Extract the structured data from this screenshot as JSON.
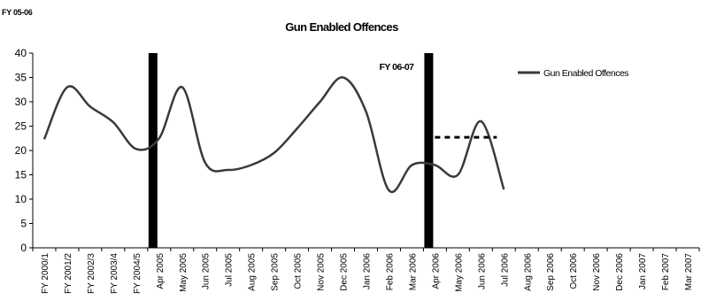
{
  "chart_data": {
    "type": "line",
    "title": "Gun Enabled Offences",
    "corner_label": "FY 05-06",
    "fy_label": "FY 06-07",
    "xlabel": "",
    "ylabel": "",
    "ylim": [
      0,
      40
    ],
    "yticks": [
      0,
      5,
      10,
      15,
      20,
      25,
      30,
      35,
      40
    ],
    "categories": [
      "FY 2000/1",
      "FY 2001/2",
      "FY 2002/3",
      "FY 2003/4",
      "FY 2004/5",
      "Apr 2005",
      "May 2005",
      "Jun 2005",
      "Jul 2005",
      "Aug 2005",
      "Sep 2005",
      "Oct 2005",
      "Nov 2005",
      "Dec 2005",
      "Jan 2006",
      "Feb 2006",
      "Mar 2006",
      "Apr 2006",
      "May 2006",
      "Jun 2006",
      "Jul 2006",
      "Aug 2006",
      "Sep 2006",
      "Oct 2006",
      "Nov 2006",
      "Dec 2006",
      "Jan 2007",
      "Feb 2007",
      "Mar 2007"
    ],
    "series": [
      {
        "name": "Gun Enabled Offences",
        "color": "#3a3a3a",
        "values": [
          22.3,
          33,
          29,
          25.8,
          20.3,
          22.5,
          33,
          17.5,
          16,
          17,
          19.5,
          24.5,
          30,
          35,
          28,
          11.8,
          17,
          17,
          15,
          26,
          12,
          null,
          null,
          null,
          null,
          null,
          null,
          null,
          null
        ]
      }
    ],
    "target_line": {
      "value": 22.7,
      "from": "Apr 2006",
      "to": "Jul 2006",
      "style": "dotted"
    },
    "fy_markers": [
      "Apr 2005",
      "Apr 2006"
    ],
    "legend": {
      "position": "top-right"
    },
    "grid": false
  }
}
